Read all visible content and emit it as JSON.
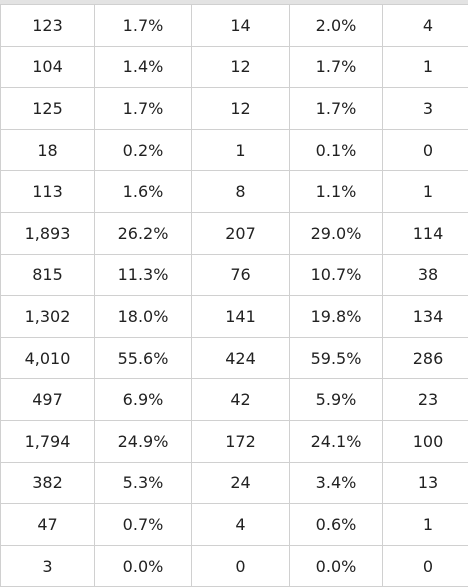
{
  "table": {
    "rows": [
      [
        "123",
        "1.7%",
        "14",
        "2.0%",
        "4"
      ],
      [
        "104",
        "1.4%",
        "12",
        "1.7%",
        "1"
      ],
      [
        "125",
        "1.7%",
        "12",
        "1.7%",
        "3"
      ],
      [
        "18",
        "0.2%",
        "1",
        "0.1%",
        "0"
      ],
      [
        "113",
        "1.6%",
        "8",
        "1.1%",
        "1"
      ],
      [
        "1,893",
        "26.2%",
        "207",
        "29.0%",
        "114"
      ],
      [
        "815",
        "11.3%",
        "76",
        "10.7%",
        "38"
      ],
      [
        "1,302",
        "18.0%",
        "141",
        "19.8%",
        "134"
      ],
      [
        "4,010",
        "55.6%",
        "424",
        "59.5%",
        "286"
      ],
      [
        "497",
        "6.9%",
        "42",
        "5.9%",
        "23"
      ],
      [
        "1,794",
        "24.9%",
        "172",
        "24.1%",
        "100"
      ],
      [
        "382",
        "5.3%",
        "24",
        "3.4%",
        "13"
      ],
      [
        "47",
        "0.7%",
        "4",
        "0.6%",
        "1"
      ],
      [
        "3",
        "0.0%",
        "0",
        "0.0%",
        "0"
      ]
    ]
  }
}
